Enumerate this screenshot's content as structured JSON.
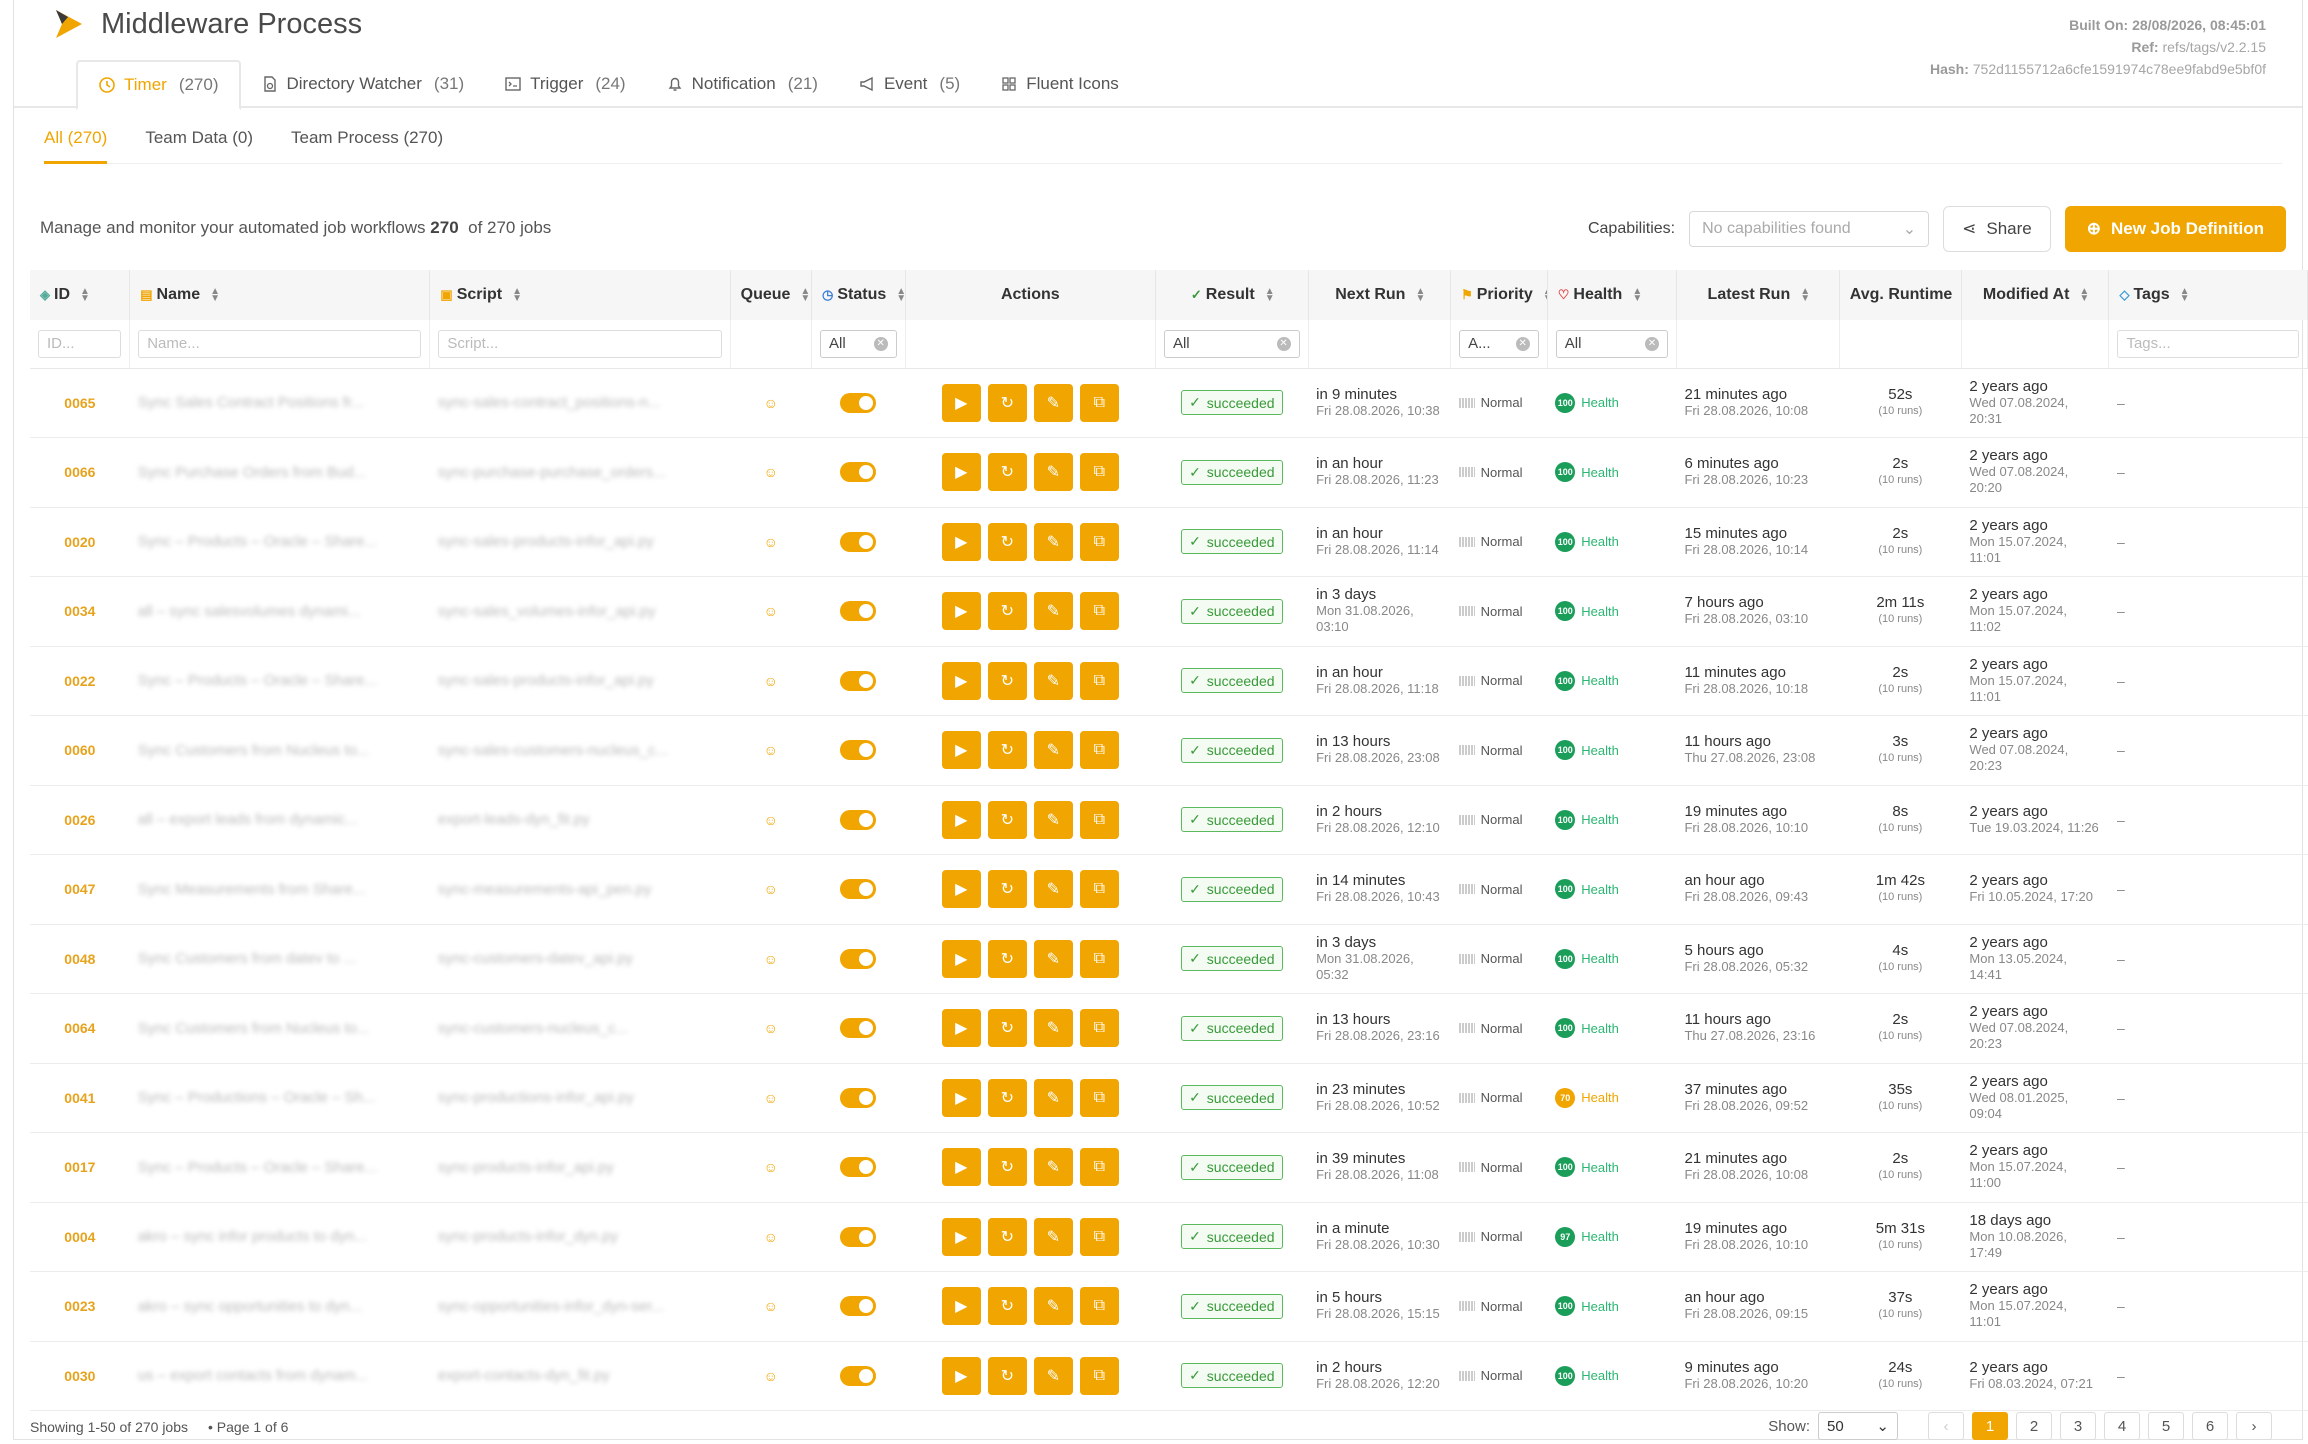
{
  "app": {
    "title": "Middleware Process",
    "built_on": "Built On: 28/08/2026, 08:45:01",
    "ref_label": "Ref:",
    "ref": "refs/tags/v2.2.15",
    "hash_label": "Hash:",
    "hash": "752d1155712a6cfe1591974c78ee9fabd9e5bf0f"
  },
  "tabs": [
    {
      "label": "Timer",
      "count": "(270)",
      "icon": "clock-icon"
    },
    {
      "label": "Directory Watcher",
      "count": "(31)",
      "icon": "file-watch-icon"
    },
    {
      "label": "Trigger",
      "count": "(24)",
      "icon": "terminal-icon"
    },
    {
      "label": "Notification",
      "count": "(21)",
      "icon": "bell-icon"
    },
    {
      "label": "Event",
      "count": "(5)",
      "icon": "megaphone-icon"
    },
    {
      "label": "Fluent Icons",
      "count": "",
      "icon": "grid-icon"
    }
  ],
  "subtabs": [
    "All (270)",
    "Team Data (0)",
    "Team Process (270)"
  ],
  "description": {
    "text": "Manage and monitor your automated job workflows",
    "count": "270",
    "suffix": "of 270 jobs"
  },
  "toolbar": {
    "capabilities_label": "Capabilities:",
    "capabilities_placeholder": "No capabilities found",
    "share": "Share",
    "new_job": "New Job Definition"
  },
  "columns": [
    "ID",
    "Name",
    "Script",
    "Queue",
    "Status",
    "Actions",
    "Result",
    "Next Run",
    "Priority",
    "Health",
    "Latest Run",
    "Avg. Runtime",
    "Modified At",
    "Tags"
  ],
  "filters": {
    "id": "ID...",
    "name": "Name...",
    "script": "Script...",
    "status": "All",
    "result": "All",
    "priority": "A...",
    "health": "All",
    "tags": "Tags..."
  },
  "rows": [
    {
      "id": "0065",
      "name": "Sync Sales Contract Positions fr...",
      "script": "sync-sales-contract_positions-n...",
      "result": "succeeded",
      "next_a": "in 9 minutes",
      "next_b": "Fri 28.08.2026, 10:38",
      "priority": "Normal",
      "health": "100",
      "health_label": "Health",
      "latest_a": "21 minutes ago",
      "latest_b": "Fri 28.08.2026, 10:08",
      "avg": "52s",
      "runs": "(10 runs)",
      "mod_a": "2 years ago",
      "mod_b": "Wed 07.08.2024, 20:31",
      "tags": "–"
    },
    {
      "id": "0066",
      "name": "Sync Purchase Orders from Bud...",
      "script": "sync-purchase-purchase_orders...",
      "result": "succeeded",
      "next_a": "in an hour",
      "next_b": "Fri 28.08.2026, 11:23",
      "priority": "Normal",
      "health": "100",
      "health_label": "Health",
      "latest_a": "6 minutes ago",
      "latest_b": "Fri 28.08.2026, 10:23",
      "avg": "2s",
      "runs": "(10 runs)",
      "mod_a": "2 years ago",
      "mod_b": "Wed 07.08.2024, 20:20",
      "tags": "–"
    },
    {
      "id": "0020",
      "name": "Sync – Products – Oracle – Share...",
      "script": "sync-sales-products-infor_api.py",
      "result": "succeeded",
      "next_a": "in an hour",
      "next_b": "Fri 28.08.2026, 11:14",
      "priority": "Normal",
      "health": "100",
      "health_label": "Health",
      "latest_a": "15 minutes ago",
      "latest_b": "Fri 28.08.2026, 10:14",
      "avg": "2s",
      "runs": "(10 runs)",
      "mod_a": "2 years ago",
      "mod_b": "Mon 15.07.2024, 11:01",
      "tags": "–"
    },
    {
      "id": "0034",
      "name": "all – sync salesvolumes dynami...",
      "script": "sync-sales_volumes-infor_api.py",
      "result": "succeeded",
      "next_a": "in 3 days",
      "next_b": "Mon 31.08.2026, 03:10",
      "priority": "Normal",
      "health": "100",
      "health_label": "Health",
      "latest_a": "7 hours ago",
      "latest_b": "Fri 28.08.2026, 03:10",
      "avg": "2m 11s",
      "runs": "(10 runs)",
      "mod_a": "2 years ago",
      "mod_b": "Mon 15.07.2024, 11:02",
      "tags": "–"
    },
    {
      "id": "0022",
      "name": "Sync – Products – Oracle – Share...",
      "script": "sync-sales-products-infor_api.py",
      "result": "succeeded",
      "next_a": "in an hour",
      "next_b": "Fri 28.08.2026, 11:18",
      "priority": "Normal",
      "health": "100",
      "health_label": "Health",
      "latest_a": "11 minutes ago",
      "latest_b": "Fri 28.08.2026, 10:18",
      "avg": "2s",
      "runs": "(10 runs)",
      "mod_a": "2 years ago",
      "mod_b": "Mon 15.07.2024, 11:01",
      "tags": "–"
    },
    {
      "id": "0060",
      "name": "Sync Customers from Nucleus to...",
      "script": "sync-sales-customers-nucleus_c...",
      "result": "succeeded",
      "next_a": "in 13 hours",
      "next_b": "Fri 28.08.2026, 23:08",
      "priority": "Normal",
      "health": "100",
      "health_label": "Health",
      "latest_a": "11 hours ago",
      "latest_b": "Thu 27.08.2026, 23:08",
      "avg": "3s",
      "runs": "(10 runs)",
      "mod_a": "2 years ago",
      "mod_b": "Wed 07.08.2024, 20:23",
      "tags": "–"
    },
    {
      "id": "0026",
      "name": "all – export leads from dynamic...",
      "script": "export-leads-dyn_fit.py",
      "result": "succeeded",
      "next_a": "in 2 hours",
      "next_b": "Fri 28.08.2026, 12:10",
      "priority": "Normal",
      "health": "100",
      "health_label": "Health",
      "latest_a": "19 minutes ago",
      "latest_b": "Fri 28.08.2026, 10:10",
      "avg": "8s",
      "runs": "(10 runs)",
      "mod_a": "2 years ago",
      "mod_b": "Tue 19.03.2024, 11:26",
      "tags": "–"
    },
    {
      "id": "0047",
      "name": "Sync Measurements from Share...",
      "script": "sync-measurements-api_pen.py",
      "result": "succeeded",
      "next_a": "in 14 minutes",
      "next_b": "Fri 28.08.2026, 10:43",
      "priority": "Normal",
      "health": "100",
      "health_label": "Health",
      "latest_a": "an hour ago",
      "latest_b": "Fri 28.08.2026, 09:43",
      "avg": "1m 42s",
      "runs": "(10 runs)",
      "mod_a": "2 years ago",
      "mod_b": "Fri 10.05.2024, 17:20",
      "tags": "–"
    },
    {
      "id": "0048",
      "name": "Sync Customers from datev to ...",
      "script": "sync-customers-datev_api.py",
      "result": "succeeded",
      "next_a": "in 3 days",
      "next_b": "Mon 31.08.2026, 05:32",
      "priority": "Normal",
      "health": "100",
      "health_label": "Health",
      "latest_a": "5 hours ago",
      "latest_b": "Fri 28.08.2026, 05:32",
      "avg": "4s",
      "runs": "(10 runs)",
      "mod_a": "2 years ago",
      "mod_b": "Mon 13.05.2024, 14:41",
      "tags": "–"
    },
    {
      "id": "0064",
      "name": "Sync Customers from Nucleus to...",
      "script": "sync-customers-nucleus_c...",
      "result": "succeeded",
      "next_a": "in 13 hours",
      "next_b": "Fri 28.08.2026, 23:16",
      "priority": "Normal",
      "health": "100",
      "health_label": "Health",
      "latest_a": "11 hours ago",
      "latest_b": "Thu 27.08.2026, 23:16",
      "avg": "2s",
      "runs": "(10 runs)",
      "mod_a": "2 years ago",
      "mod_b": "Wed 07.08.2024, 20:23",
      "tags": "–"
    },
    {
      "id": "0041",
      "name": "Sync – Productions – Oracle – Sh...",
      "script": "sync-productions-infor_api.py",
      "result": "succeeded",
      "next_a": "in 23 minutes",
      "next_b": "Fri 28.08.2026, 10:52",
      "priority": "Normal",
      "health": "70",
      "health_label": "Health",
      "warn": true,
      "latest_a": "37 minutes ago",
      "latest_b": "Fri 28.08.2026, 09:52",
      "avg": "35s",
      "runs": "(10 runs)",
      "mod_a": "2 years ago",
      "mod_b": "Wed 08.01.2025, 09:04",
      "tags": "–"
    },
    {
      "id": "0017",
      "name": "Sync – Products – Oracle – Share...",
      "script": "sync-products-infor_api.py",
      "result": "succeeded",
      "next_a": "in 39 minutes",
      "next_b": "Fri 28.08.2026, 11:08",
      "priority": "Normal",
      "health": "100",
      "health_label": "Health",
      "latest_a": "21 minutes ago",
      "latest_b": "Fri 28.08.2026, 10:08",
      "avg": "2s",
      "runs": "(10 runs)",
      "mod_a": "2 years ago",
      "mod_b": "Mon 15.07.2024, 11:00",
      "tags": "–"
    },
    {
      "id": "0004",
      "name": "akro – sync infor products to dyn...",
      "script": "sync-products-infor_dyn.py",
      "result": "succeeded",
      "next_a": "in a minute",
      "next_b": "Fri 28.08.2026, 10:30",
      "priority": "Normal",
      "health": "97",
      "health_label": "Health",
      "latest_a": "19 minutes ago",
      "latest_b": "Fri 28.08.2026, 10:10",
      "avg": "5m 31s",
      "runs": "(10 runs)",
      "mod_a": "18 days ago",
      "mod_b": "Mon 10.08.2026, 17:49",
      "tags": "–"
    },
    {
      "id": "0023",
      "name": "akro – sync opportunities to dyn...",
      "script": "sync-opportunities-infor_dyn-ser...",
      "result": "succeeded",
      "next_a": "in 5 hours",
      "next_b": "Fri 28.08.2026, 15:15",
      "priority": "Normal",
      "health": "100",
      "health_label": "Health",
      "latest_a": "an hour ago",
      "latest_b": "Fri 28.08.2026, 09:15",
      "avg": "37s",
      "runs": "(10 runs)",
      "mod_a": "2 years ago",
      "mod_b": "Mon 15.07.2024, 11:01",
      "tags": "–"
    },
    {
      "id": "0030",
      "name": "us – export contacts from dynam...",
      "script": "export-contacts-dyn_fit.py",
      "result": "succeeded",
      "next_a": "in 2 hours",
      "next_b": "Fri 28.08.2026, 12:20",
      "priority": "Normal",
      "health": "100",
      "health_label": "Health",
      "latest_a": "9 minutes ago",
      "latest_b": "Fri 28.08.2026, 10:20",
      "avg": "24s",
      "runs": "(10 runs)",
      "mod_a": "2 years ago",
      "mod_b": "Fri 08.03.2024, 07:21",
      "tags": "–"
    }
  ],
  "footer": {
    "showing": "Showing 1-50 of 270 jobs",
    "page": "• Page 1 of 6",
    "show_label": "Show:",
    "page_size": "50",
    "pages": [
      "1",
      "2",
      "3",
      "4",
      "5",
      "6"
    ],
    "prev": "‹",
    "next": "›"
  },
  "colors": {
    "accent": "#f0a500",
    "success": "#3a9a3a",
    "health": "#1a9e5a"
  }
}
